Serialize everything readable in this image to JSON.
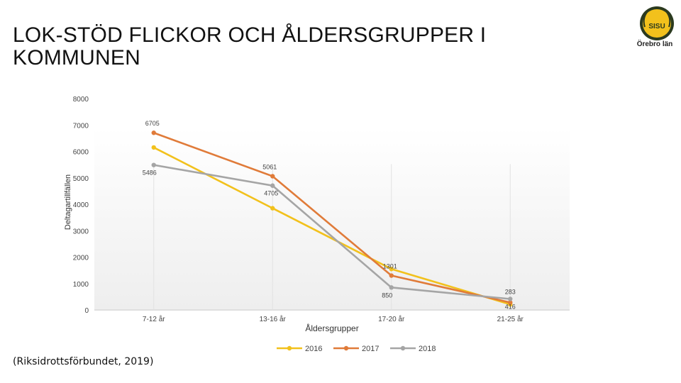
{
  "slide": {
    "title": "LOK-STÖD FLICKOR OCH ÅLDERSGRUPPER I KOMMUNEN",
    "source": "(Riksidrottsförbundet, 2019)",
    "logo_text": "Örebro län",
    "logo_badge": "SISU"
  },
  "chart_data": {
    "type": "line",
    "xlabel": "Åldersgrupper",
    "ylabel": "Deltagartillfällen",
    "ylim": [
      0,
      8000
    ],
    "yticks": [
      0,
      1000,
      2000,
      3000,
      4000,
      5000,
      6000,
      7000,
      8000
    ],
    "categories": [
      "7-12 år",
      "13-16 år",
      "17-20 år",
      "21-25 år"
    ],
    "legend_position": "bottom",
    "grid": false,
    "series": [
      {
        "name": "2016",
        "color": "#F2C11C",
        "values": [
          6150,
          3850,
          1550,
          210
        ],
        "labels": [
          null,
          null,
          null,
          null
        ]
      },
      {
        "name": "2017",
        "color": "#E07B39",
        "values": [
          6705,
          5061,
          1301,
          283
        ],
        "labels": [
          "6705",
          "5061",
          "1301",
          "283"
        ]
      },
      {
        "name": "2018",
        "color": "#A5A5A5",
        "values": [
          5486,
          4705,
          850,
          416
        ],
        "labels": [
          "5486",
          "4705",
          "850",
          "416"
        ]
      }
    ]
  }
}
